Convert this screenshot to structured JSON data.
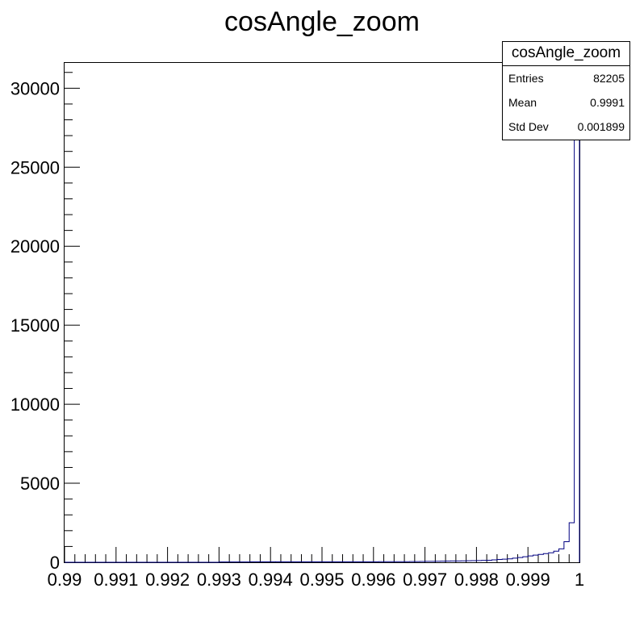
{
  "chart_data": {
    "type": "histogram",
    "title": "cosAngle_zoom",
    "xlabel": "",
    "ylabel": "",
    "xlim": [
      0.99,
      1.0
    ],
    "ylim": [
      0,
      31600
    ],
    "x_ticks": [
      "0.99",
      "0.991",
      "0.992",
      "0.993",
      "0.994",
      "0.995",
      "0.996",
      "0.997",
      "0.998",
      "0.999",
      "1"
    ],
    "y_ticks": [
      "0",
      "5000",
      "10000",
      "15000",
      "20000",
      "25000",
      "30000"
    ],
    "bins": {
      "x_start": 0.99,
      "x_end": 1.0,
      "count": 100,
      "values": [
        0,
        0,
        0,
        0,
        0,
        0,
        0,
        0,
        0,
        0,
        0,
        0,
        0,
        0,
        0,
        0,
        0,
        0,
        0,
        0,
        0,
        0,
        0,
        0,
        0,
        0,
        0,
        0,
        0,
        0,
        20,
        20,
        20,
        20,
        20,
        20,
        25,
        25,
        25,
        25,
        25,
        30,
        30,
        30,
        30,
        30,
        30,
        30,
        30,
        30,
        30,
        30,
        35,
        35,
        35,
        35,
        35,
        35,
        35,
        35,
        35,
        40,
        40,
        40,
        40,
        40,
        40,
        45,
        45,
        50,
        60,
        60,
        65,
        70,
        75,
        80,
        85,
        90,
        95,
        100,
        110,
        120,
        130,
        150,
        180,
        200,
        220,
        260,
        300,
        350,
        400,
        450,
        500,
        550,
        600,
        700,
        850,
        1300,
        2500,
        29500
      ]
    },
    "line_color": "#000080",
    "legend": "top-right",
    "grid": false
  },
  "stats": {
    "title": "cosAngle_zoom",
    "rows": [
      {
        "label": "Entries",
        "value": "82205"
      },
      {
        "label": "Mean",
        "value": "0.9991"
      },
      {
        "label": "Std Dev",
        "value": "0.001899"
      }
    ]
  }
}
